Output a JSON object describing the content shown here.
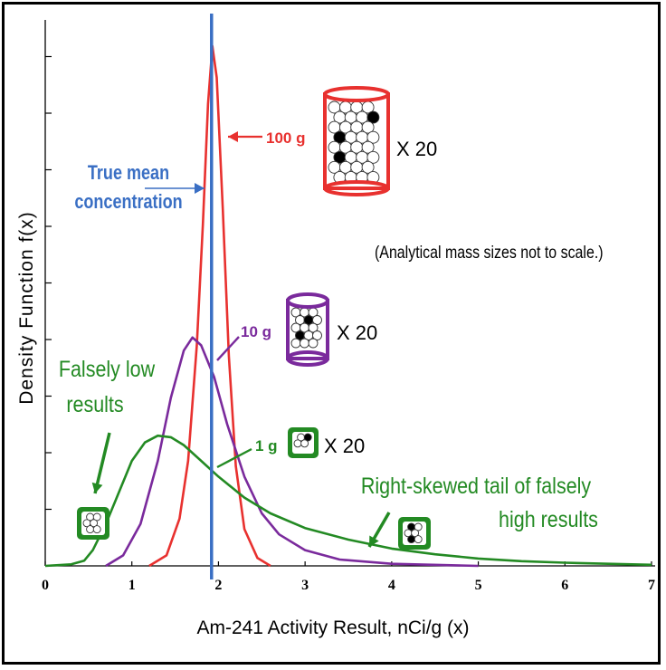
{
  "chart_data": {
    "type": "line",
    "xlabel": "Am-241 Activity Result, nCi/g (x)",
    "ylabel": "Density Function f(x)",
    "xlim": [
      0,
      7
    ],
    "ylim": [
      0,
      1
    ],
    "x_ticks": [
      "0",
      "1",
      "2",
      "3",
      "4",
      "5",
      "6",
      "7"
    ],
    "true_mean": 1.92,
    "series": [
      {
        "name": "100 g",
        "color": "#e8312f",
        "points": [
          [
            1.2,
            0.0
          ],
          [
            1.4,
            0.02
          ],
          [
            1.55,
            0.09
          ],
          [
            1.65,
            0.2
          ],
          [
            1.75,
            0.42
          ],
          [
            1.82,
            0.65
          ],
          [
            1.88,
            0.88
          ],
          [
            1.93,
            0.99
          ],
          [
            1.98,
            0.93
          ],
          [
            2.05,
            0.68
          ],
          [
            2.12,
            0.4
          ],
          [
            2.2,
            0.19
          ],
          [
            2.3,
            0.07
          ],
          [
            2.45,
            0.015
          ],
          [
            2.6,
            0.0
          ]
        ]
      },
      {
        "name": "10 g",
        "color": "#7a2a9c",
        "points": [
          [
            0.7,
            0.0
          ],
          [
            0.9,
            0.02
          ],
          [
            1.1,
            0.08
          ],
          [
            1.3,
            0.2
          ],
          [
            1.45,
            0.32
          ],
          [
            1.6,
            0.41
          ],
          [
            1.7,
            0.435
          ],
          [
            1.8,
            0.42
          ],
          [
            1.95,
            0.36
          ],
          [
            2.1,
            0.27
          ],
          [
            2.3,
            0.17
          ],
          [
            2.5,
            0.1
          ],
          [
            2.7,
            0.06
          ],
          [
            3.0,
            0.03
          ],
          [
            3.4,
            0.012
          ],
          [
            4.0,
            0.004
          ],
          [
            5.0,
            0.0
          ]
        ]
      },
      {
        "name": "1 g",
        "color": "#238a23",
        "points": [
          [
            0.0,
            0.0
          ],
          [
            0.3,
            0.003
          ],
          [
            0.45,
            0.01
          ],
          [
            0.55,
            0.03
          ],
          [
            0.7,
            0.08
          ],
          [
            0.85,
            0.14
          ],
          [
            1.0,
            0.2
          ],
          [
            1.15,
            0.235
          ],
          [
            1.3,
            0.248
          ],
          [
            1.45,
            0.245
          ],
          [
            1.6,
            0.23
          ],
          [
            1.8,
            0.2
          ],
          [
            2.0,
            0.17
          ],
          [
            2.3,
            0.13
          ],
          [
            2.6,
            0.1
          ],
          [
            3.0,
            0.072
          ],
          [
            3.5,
            0.05
          ],
          [
            4.0,
            0.033
          ],
          [
            4.5,
            0.022
          ],
          [
            5.0,
            0.014
          ],
          [
            5.5,
            0.009
          ],
          [
            6.0,
            0.006
          ],
          [
            6.5,
            0.004
          ],
          [
            7.0,
            0.002
          ]
        ]
      }
    ],
    "annotations": {
      "true_mean_label": [
        "True mean",
        "concentration"
      ],
      "label_100g": "100 g",
      "label_10g": "10 g",
      "label_1g": "1 g",
      "multiplier": "X 20",
      "note": "(Analytical mass sizes not to scale.)",
      "falsely_low": [
        "Falsely low",
        "results"
      ],
      "right_tail": [
        "Right-skewed tail of falsely",
        "high results"
      ]
    },
    "colors": {
      "mean_line": "#3a6fc4",
      "red": "#e8312f",
      "purple": "#7a2a9c",
      "green": "#238a23"
    }
  }
}
